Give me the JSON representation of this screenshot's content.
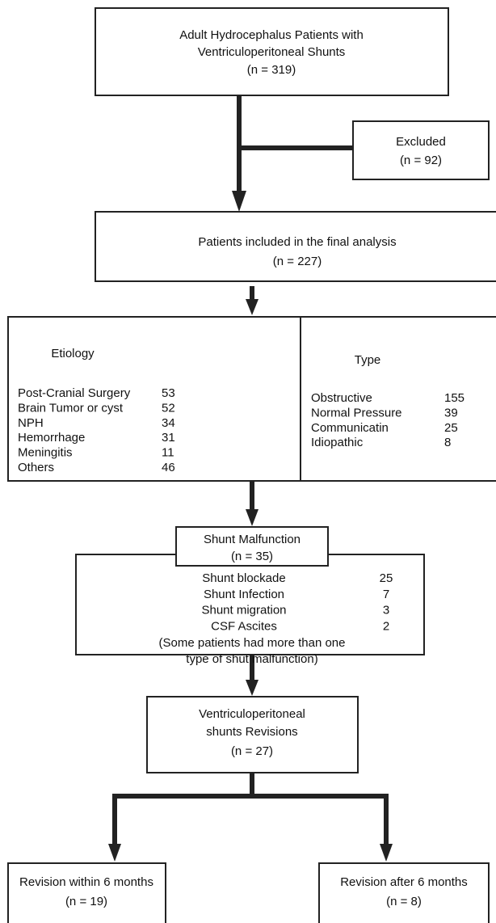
{
  "boxes": {
    "population": {
      "lines": [
        "Adult Hydrocephalus Patients with",
        "Ventriculoperitoneal Shunts",
        "(n = 319)"
      ]
    },
    "excluded": {
      "lines": [
        "Excluded",
        "(n = 92)"
      ]
    },
    "included": {
      "lines": [
        "Patients included in the final analysis",
        "(n = 227)"
      ]
    },
    "etiology": {
      "title": "Etiology",
      "rows": [
        [
          "Post-Cranial Surgery",
          53
        ],
        [
          "Brain Tumor or cyst",
          52
        ],
        [
          "NPH",
          34
        ],
        [
          "Hemorrhage",
          31
        ],
        [
          "Meningitis",
          11
        ],
        [
          "Others",
          46
        ]
      ]
    },
    "type": {
      "title": "Type",
      "rows": [
        [
          "Obstructive",
          155
        ],
        [
          "Normal Pressure",
          39
        ],
        [
          "Communicatin",
          25
        ],
        [
          "Idiopathic",
          8
        ]
      ]
    },
    "malfunction": {
      "title": "Shunt Malfunction",
      "count": "(n = 35)",
      "rows": [
        [
          "Shunt blockade",
          25
        ],
        [
          "Shunt Infection",
          7
        ],
        [
          "Shunt migration",
          3
        ],
        [
          "CSF Ascites",
          2
        ]
      ],
      "note": [
        "(Some patients had more than one",
        "type of shut malfunction)"
      ]
    },
    "revisions": {
      "lines": [
        "Ventriculoperitoneal",
        "shunts Revisions",
        "(n = 27)"
      ]
    },
    "early": {
      "lines": [
        "Revision within 6 months",
        "(n = 19)"
      ]
    },
    "late": {
      "lines": [
        "Revision after 6 months",
        "(n = 8)"
      ]
    }
  }
}
